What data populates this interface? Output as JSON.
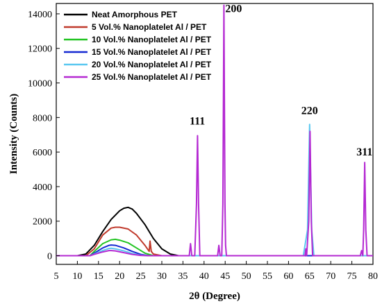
{
  "chart_data": {
    "type": "line",
    "xlabel": "2θ (Degree)",
    "ylabel": "Intensity (Counts)",
    "xlim": [
      5,
      80
    ],
    "ylim": [
      -500,
      14600
    ],
    "xticks": [
      5,
      10,
      15,
      20,
      25,
      30,
      35,
      40,
      45,
      50,
      55,
      60,
      65,
      70,
      75,
      80
    ],
    "yticks": [
      0,
      2000,
      4000,
      6000,
      8000,
      10000,
      12000,
      14000
    ],
    "grid": false,
    "legend_position": "top-left",
    "series": [
      {
        "name": "Neat Amorphous PET",
        "color": "#000000",
        "points": [
          [
            5,
            0
          ],
          [
            10,
            0
          ],
          [
            12,
            100
          ],
          [
            14,
            600
          ],
          [
            16,
            1400
          ],
          [
            18,
            2100
          ],
          [
            20,
            2600
          ],
          [
            21,
            2750
          ],
          [
            22,
            2800
          ],
          [
            23,
            2700
          ],
          [
            24,
            2450
          ],
          [
            26,
            1800
          ],
          [
            28,
            1000
          ],
          [
            30,
            400
          ],
          [
            32,
            100
          ],
          [
            34,
            0
          ],
          [
            80,
            0
          ]
        ]
      },
      {
        "name": "5  Vol.% Nanoplatelet Al / PET",
        "color": "#c0392b",
        "points": [
          [
            5,
            0
          ],
          [
            12,
            0
          ],
          [
            14,
            400
          ],
          [
            16,
            1200
          ],
          [
            18,
            1600
          ],
          [
            19,
            1650
          ],
          [
            20,
            1650
          ],
          [
            22,
            1550
          ],
          [
            24,
            1200
          ],
          [
            26,
            600
          ],
          [
            27,
            250
          ],
          [
            27.2,
            850
          ],
          [
            27.5,
            250
          ],
          [
            28,
            100
          ],
          [
            30,
            0
          ],
          [
            80,
            0
          ]
        ]
      },
      {
        "name": "10 Vol.% Nanoplatelet Al / PET",
        "color": "#22c422",
        "points": [
          [
            5,
            0
          ],
          [
            13,
            0
          ],
          [
            14,
            250
          ],
          [
            16,
            700
          ],
          [
            18,
            920
          ],
          [
            19,
            950
          ],
          [
            20,
            900
          ],
          [
            22,
            750
          ],
          [
            24,
            450
          ],
          [
            26,
            150
          ],
          [
            28,
            0
          ],
          [
            80,
            0
          ]
        ]
      },
      {
        "name": "15 Vol.% Nanoplatelet Al / PET",
        "color": "#1428d2",
        "points": [
          [
            5,
            0
          ],
          [
            13,
            0
          ],
          [
            14,
            150
          ],
          [
            16,
            450
          ],
          [
            17.5,
            600
          ],
          [
            18,
            620
          ],
          [
            19,
            600
          ],
          [
            21,
            450
          ],
          [
            23,
            250
          ],
          [
            25,
            80
          ],
          [
            27,
            0
          ],
          [
            80,
            0
          ]
        ]
      },
      {
        "name": "20 Vol.% Nanoplatelet Al / PET",
        "color": "#5ac8f0",
        "points": [
          [
            5,
            0
          ],
          [
            13,
            0
          ],
          [
            14,
            100
          ],
          [
            16,
            300
          ],
          [
            17.5,
            420
          ],
          [
            18,
            430
          ],
          [
            19,
            400
          ],
          [
            21,
            280
          ],
          [
            23,
            130
          ],
          [
            25,
            30
          ],
          [
            27,
            0
          ],
          [
            63.5,
            0
          ],
          [
            64.5,
            1500
          ],
          [
            65,
            7600
          ],
          [
            65.5,
            1500
          ],
          [
            66,
            0
          ],
          [
            80,
            0
          ]
        ]
      },
      {
        "name": "25 Vol.% Nanoplatelet Al / PET",
        "color": "#b428d2",
        "points": [
          [
            5,
            0
          ],
          [
            13,
            0
          ],
          [
            14,
            80
          ],
          [
            16,
            220
          ],
          [
            17.5,
            300
          ],
          [
            18,
            300
          ],
          [
            19,
            280
          ],
          [
            21,
            180
          ],
          [
            23,
            80
          ],
          [
            25,
            20
          ],
          [
            27,
            0
          ],
          [
            36.5,
            0
          ],
          [
            36.8,
            700
          ],
          [
            37.1,
            0
          ],
          [
            37.8,
            0
          ],
          [
            38.2,
            3000
          ],
          [
            38.45,
            6950
          ],
          [
            38.7,
            3000
          ],
          [
            39,
            0
          ],
          [
            43.2,
            0
          ],
          [
            43.5,
            600
          ],
          [
            43.8,
            0
          ],
          [
            44.2,
            0
          ],
          [
            44.45,
            3000
          ],
          [
            44.7,
            14500
          ],
          [
            44.95,
            3000
          ],
          [
            45.1,
            600
          ],
          [
            45.3,
            0
          ],
          [
            63.9,
            0
          ],
          [
            64.1,
            400
          ],
          [
            64.3,
            0
          ],
          [
            64.8,
            2000
          ],
          [
            65.1,
            7200
          ],
          [
            65.4,
            2000
          ],
          [
            65.7,
            0
          ],
          [
            77,
            0
          ],
          [
            77.3,
            300
          ],
          [
            77.6,
            0
          ],
          [
            77.8,
            1500
          ],
          [
            78.05,
            5400
          ],
          [
            78.3,
            1500
          ],
          [
            78.6,
            0
          ],
          [
            80,
            0
          ]
        ]
      }
    ],
    "annotations": [
      {
        "text": "111",
        "x": 38.4,
        "y": 7600
      },
      {
        "text": "200",
        "x": 47,
        "y": 14100
      },
      {
        "text": "220",
        "x": 65,
        "y": 8200
      },
      {
        "text": "311",
        "x": 78,
        "y": 5800
      }
    ]
  }
}
